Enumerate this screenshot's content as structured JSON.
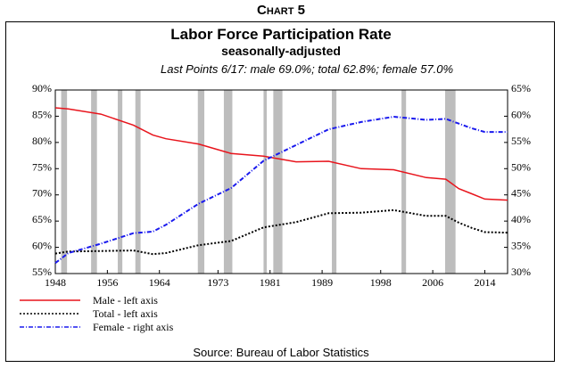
{
  "heading": "Chart 5",
  "chart_data": {
    "type": "line",
    "title": "Labor Force Participation Rate",
    "subtitle": "seasonally-adjusted",
    "annotation": "Last Points 6/17: male 69.0%; total 62.8%; female 57.0%",
    "source": "Source: Bureau of Labor Statistics",
    "xlim": [
      1948,
      2017.5
    ],
    "x_ticks": [
      "1948",
      "1956",
      "1964",
      "1973",
      "1981",
      "1989",
      "1998",
      "2006",
      "2014"
    ],
    "left_ylim": [
      55,
      90
    ],
    "right_ylim": [
      30,
      65
    ],
    "left_ticks": [
      "55%",
      "60%",
      "65%",
      "70%",
      "75%",
      "80%",
      "85%",
      "90%"
    ],
    "right_ticks": [
      "30%",
      "35%",
      "40%",
      "45%",
      "50%",
      "55%",
      "60%",
      "65%"
    ],
    "x": [
      1948,
      1950,
      1955,
      1960,
      1963,
      1965,
      1970,
      1975,
      1980,
      1985,
      1990,
      1995,
      2000,
      2005,
      2008,
      2010,
      2012,
      2014,
      2017.5
    ],
    "series": [
      {
        "name": "Male - left axis",
        "axis": "left",
        "color": "#e8141c",
        "style": "solid",
        "values": [
          86.6,
          86.4,
          85.4,
          83.3,
          81.4,
          80.7,
          79.7,
          77.9,
          77.4,
          76.3,
          76.4,
          75.0,
          74.8,
          73.3,
          73.0,
          71.2,
          70.2,
          69.2,
          69.0
        ]
      },
      {
        "name": "Total - left axis",
        "axis": "left",
        "color": "#000000",
        "style": "dotted",
        "values": [
          58.8,
          59.2,
          59.3,
          59.4,
          58.7,
          58.9,
          60.4,
          61.2,
          63.8,
          64.8,
          66.5,
          66.6,
          67.1,
          66.0,
          66.0,
          64.7,
          63.7,
          62.9,
          62.8
        ]
      },
      {
        "name": "Female - right axis",
        "axis": "right",
        "color": "#1a1aee",
        "style": "dash-dot",
        "values": [
          32.0,
          33.9,
          35.7,
          37.7,
          38.0,
          39.3,
          43.3,
          46.3,
          51.5,
          54.5,
          57.5,
          58.9,
          59.9,
          59.3,
          59.5,
          58.6,
          57.7,
          57.0,
          57.0
        ]
      }
    ],
    "recessions": [
      [
        1948.9,
        1949.8
      ],
      [
        1953.5,
        1954.4
      ],
      [
        1957.6,
        1958.3
      ],
      [
        1960.3,
        1961.1
      ],
      [
        1969.9,
        1970.9
      ],
      [
        1973.9,
        1975.2
      ],
      [
        1980.0,
        1980.5
      ],
      [
        1981.5,
        1982.9
      ],
      [
        1990.5,
        1991.2
      ],
      [
        2001.2,
        2001.9
      ],
      [
        2007.9,
        2009.5
      ]
    ],
    "recession_color": "#bdbdbd",
    "grid": false
  }
}
